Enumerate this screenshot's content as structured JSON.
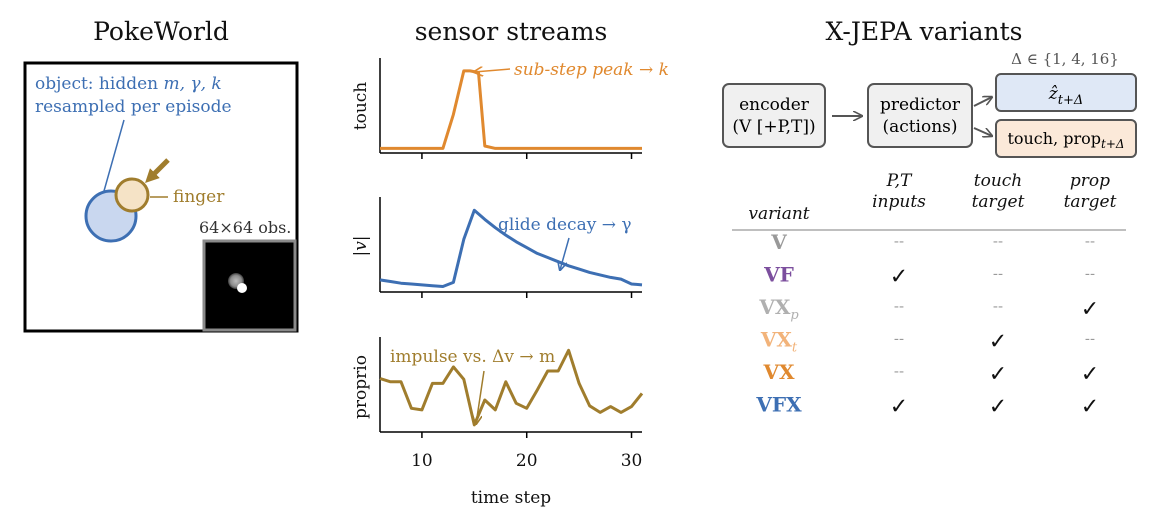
{
  "panels": {
    "pokeworld": {
      "title": "PokeWorld",
      "object_label_line1_prefix": "object: hidden ",
      "object_label_line1_vars": "m, γ, k",
      "object_label_line2": "resampled per episode",
      "finger_label": "finger",
      "obs_label": "64×64 obs."
    },
    "sensor": {
      "title": "sensor streams",
      "xlabel": "time step",
      "x_ticks": [
        10,
        20,
        30
      ],
      "xlim": [
        6,
        31
      ]
    },
    "variants": {
      "title": "X-JEPA variants",
      "delta_label": "Δ ∈ {1, 4, 16}",
      "encoder_line1": "encoder",
      "encoder_line2": "(V [+P,T])",
      "predictor_line1": "predictor",
      "predictor_line2": "(actions)",
      "target_z": "ẑ",
      "target_z_sub": "t+Δ",
      "target_tp": "touch, prop",
      "target_tp_sub": "t+Δ",
      "col_variant": "variant",
      "col1_line1": "P,T",
      "col1_line2": "inputs",
      "col2_line1": "touch",
      "col2_line2": "target",
      "col3_line1": "prop",
      "col3_line2": "target",
      "dash": "--",
      "check": "✓"
    }
  },
  "chart_data": [
    {
      "type": "line",
      "ylabel": "touch",
      "annotation": "sub-step peak → k",
      "color": "#e0892f",
      "series": [
        {
          "x": [
            6,
            7,
            8,
            9,
            10,
            11,
            12,
            13,
            14,
            14.6,
            15.4,
            16,
            17,
            18,
            19,
            20,
            21,
            22,
            23,
            24,
            25,
            26,
            27,
            28,
            29,
            30,
            31
          ],
          "y": [
            0.02,
            0.02,
            0.02,
            0.02,
            0.02,
            0.02,
            0.02,
            0.45,
            1.0,
            1.0,
            0.98,
            0.05,
            0.02,
            0.02,
            0.02,
            0.02,
            0.02,
            0.02,
            0.02,
            0.02,
            0.02,
            0.02,
            0.02,
            0.02,
            0.02,
            0.02,
            0.02
          ]
        }
      ],
      "ylim": [
        0,
        1.1
      ]
    },
    {
      "type": "line",
      "ylabel": "|v|",
      "annotation": "glide decay → γ",
      "color": "#3d6fb3",
      "series": [
        {
          "x": [
            6,
            7,
            8,
            9,
            10,
            11,
            12,
            13,
            14,
            15,
            16,
            17,
            18,
            19,
            20,
            21,
            22,
            23,
            24,
            25,
            26,
            27,
            28,
            29,
            30,
            31
          ],
          "y": [
            0.11,
            0.09,
            0.07,
            0.06,
            0.05,
            0.04,
            0.03,
            0.08,
            0.6,
            0.95,
            0.84,
            0.74,
            0.65,
            0.57,
            0.5,
            0.43,
            0.38,
            0.33,
            0.28,
            0.24,
            0.2,
            0.17,
            0.14,
            0.12,
            0.06,
            0.05
          ]
        }
      ],
      "ylim": [
        0,
        1.05
      ]
    },
    {
      "type": "line",
      "ylabel": "proprio",
      "annotation": "impulse vs. Δv → m",
      "color": "#a07d2d",
      "series": [
        {
          "x": [
            6,
            7,
            8,
            9,
            10,
            11,
            12,
            13,
            14,
            15,
            16,
            17,
            18,
            19,
            20,
            21,
            22,
            23,
            24,
            25,
            26,
            27,
            28,
            29,
            30,
            31
          ],
          "y": [
            0.56,
            0.52,
            0.52,
            0.2,
            0.18,
            0.5,
            0.5,
            0.7,
            0.55,
            0.0,
            0.3,
            0.18,
            0.52,
            0.26,
            0.2,
            0.42,
            0.65,
            0.65,
            0.9,
            0.5,
            0.23,
            0.15,
            0.22,
            0.15,
            0.22,
            0.38
          ]
        }
      ],
      "ylim": [
        -0.05,
        1.0
      ]
    }
  ],
  "variant_rows": [
    {
      "name": "V",
      "sub": "",
      "color": "#999999",
      "cells": [
        "--",
        "--",
        "--"
      ]
    },
    {
      "name": "VF",
      "sub": "",
      "color": "#7c4f9e",
      "cells": [
        "✓",
        "--",
        "--"
      ]
    },
    {
      "name": "VX",
      "sub": "p",
      "color": "#b0b0b0",
      "cells": [
        "--",
        "--",
        "✓"
      ]
    },
    {
      "name": "VX",
      "sub": "t",
      "color": "#f2b37a",
      "cells": [
        "--",
        "✓",
        "--"
      ]
    },
    {
      "name": "VX",
      "sub": "",
      "color": "#e0892f",
      "cells": [
        "--",
        "✓",
        "✓"
      ]
    },
    {
      "name": "VFX",
      "sub": "",
      "color": "#3d6fb3",
      "cells": [
        "✓",
        "✓",
        "✓"
      ]
    }
  ],
  "colors": {
    "object_blue": "#3d6fb3",
    "finger_gold": "#a07d2d",
    "touch_orange": "#e0892f",
    "target_blue_fill": "#dfe8f6",
    "target_orange_fill": "#fbe9d9"
  }
}
